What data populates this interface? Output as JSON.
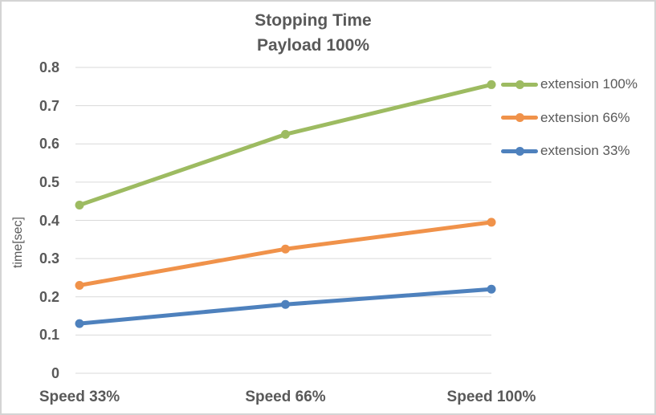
{
  "window": {
    "background": "#FFFFFF",
    "border_color": "#D4D4D4"
  },
  "chart_data": {
    "type": "line",
    "title": "Stopping Time",
    "subtitle": "Payload 100%",
    "ylabel": "time[sec]",
    "xlabel": "",
    "categories": [
      "Speed 33%",
      "Speed 66%",
      "Speed 100%"
    ],
    "series": [
      {
        "name": "extension 100%",
        "color": "#9DBB61",
        "values": [
          0.44,
          0.625,
          0.755
        ]
      },
      {
        "name": "extension 66%",
        "color": "#F0924A",
        "values": [
          0.23,
          0.325,
          0.395
        ]
      },
      {
        "name": "extension 33%",
        "color": "#4E81BD",
        "values": [
          0.13,
          0.18,
          0.22
        ]
      }
    ],
    "ylim": [
      0,
      0.8
    ],
    "ytick_step": 0.1,
    "yticks": [
      "0.8",
      "0.7",
      "0.6",
      "0.5",
      "0.4",
      "0.3",
      "0.2",
      "0.1",
      "0"
    ],
    "grid": true,
    "legend_position": "right",
    "colors": {
      "text": "#595959",
      "gridline": "#D9D9D9"
    }
  }
}
